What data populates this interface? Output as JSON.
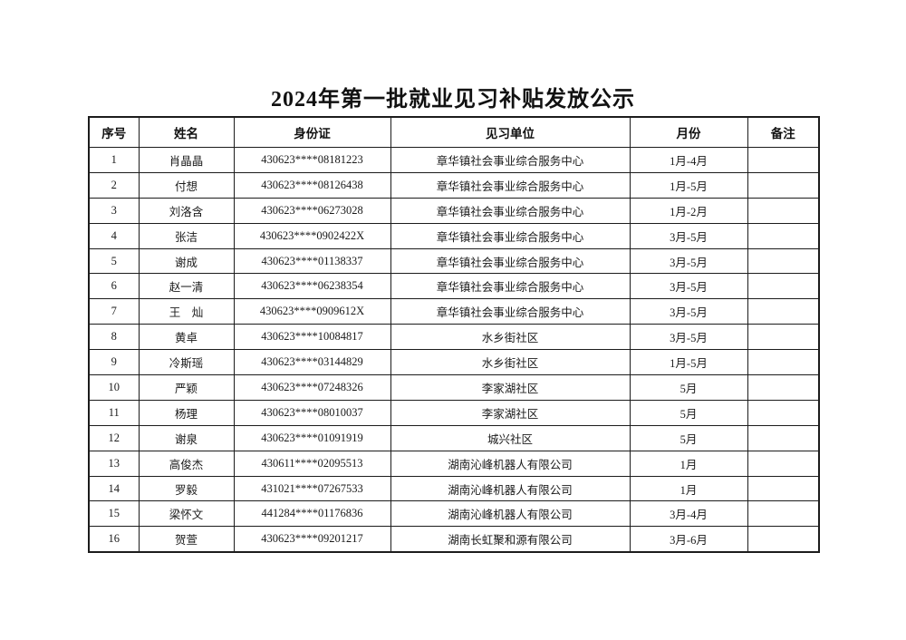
{
  "page": {
    "title": "2024年第一批就业见习补贴发放公示"
  },
  "colors": {
    "background": "#ffffff",
    "border": "#1c1c1c",
    "text": "#1a1a1a"
  },
  "table": {
    "headers": [
      "序号",
      "姓名",
      "身份证",
      "见习单位",
      "月份",
      "备注"
    ],
    "column_names": [
      "seq",
      "name",
      "id",
      "unit",
      "month",
      "remark"
    ],
    "rows": [
      [
        "1",
        "肖晶晶",
        "430623****08181223",
        "章华镇社会事业综合服务中心",
        "1月-4月",
        ""
      ],
      [
        "2",
        "付想",
        "430623****08126438",
        "章华镇社会事业综合服务中心",
        "1月-5月",
        ""
      ],
      [
        "3",
        "刘洛含",
        "430623****06273028",
        "章华镇社会事业综合服务中心",
        "1月-2月",
        ""
      ],
      [
        "4",
        "张洁",
        "430623****0902422X",
        "章华镇社会事业综合服务中心",
        "3月-5月",
        ""
      ],
      [
        "5",
        "谢成",
        "430623****01138337",
        "章华镇社会事业综合服务中心",
        "3月-5月",
        ""
      ],
      [
        "6",
        "赵一清",
        "430623****06238354",
        "章华镇社会事业综合服务中心",
        "3月-5月",
        ""
      ],
      [
        "7",
        "王　灿",
        "430623****0909612X",
        "章华镇社会事业综合服务中心",
        "3月-5月",
        ""
      ],
      [
        "8",
        "黄卓",
        "430623****10084817",
        "水乡街社区",
        "3月-5月",
        ""
      ],
      [
        "9",
        "冷斯瑶",
        "430623****03144829",
        "水乡街社区",
        "1月-5月",
        ""
      ],
      [
        "10",
        "严颖",
        "430623****07248326",
        "李家湖社区",
        "5月",
        ""
      ],
      [
        "11",
        "杨理",
        "430623****08010037",
        "李家湖社区",
        "5月",
        ""
      ],
      [
        "12",
        "谢泉",
        "430623****01091919",
        "城兴社区",
        "5月",
        ""
      ],
      [
        "13",
        "高俊杰",
        "430611****02095513",
        "湖南沁峰机器人有限公司",
        "1月",
        ""
      ],
      [
        "14",
        "罗毅",
        "431021****07267533",
        "湖南沁峰机器人有限公司",
        "1月",
        ""
      ],
      [
        "15",
        "梁怀文",
        "441284****01176836",
        "湖南沁峰机器人有限公司",
        "3月-4月",
        ""
      ],
      [
        "16",
        "贺萱",
        "430623****09201217",
        "湖南长虹聚和源有限公司",
        "3月-6月",
        ""
      ]
    ]
  }
}
